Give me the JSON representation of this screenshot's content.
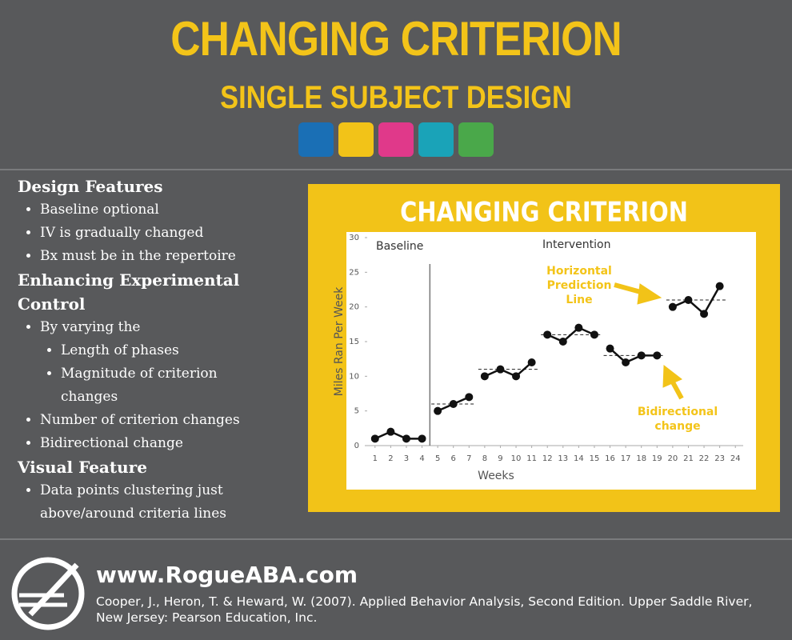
{
  "header": {
    "title": "CHANGING CRITERION",
    "subtitle": "SINGLE SUBJECT DESIGN"
  },
  "sections": [
    {
      "heading": "Design Features",
      "items": [
        {
          "text": "Baseline optional"
        },
        {
          "text": "IV is gradually changed"
        },
        {
          "text": "Bx must be in the repertoire"
        }
      ]
    },
    {
      "heading": "Enhancing Experimental Control",
      "items": [
        {
          "text": "By varying the",
          "subitems": [
            "Length of phases",
            "Magnitude of criterion changes"
          ]
        },
        {
          "text": "Number of criterion changes"
        },
        {
          "text": "Bidirectional change"
        }
      ]
    },
    {
      "heading": "Visual Feature",
      "items": [
        {
          "text": "Data points clustering just above/around criteria lines"
        }
      ]
    }
  ],
  "chart_data": {
    "type": "line",
    "title": "CHANGING CRITERION",
    "x_label": "Weeks",
    "y_label": "Miles Ran Per Week",
    "xlim": [
      0.5,
      24.5
    ],
    "xticks": [
      1,
      2,
      3,
      4,
      5,
      6,
      7,
      8,
      9,
      10,
      11,
      12,
      13,
      14,
      15,
      16,
      17,
      18,
      19,
      20,
      21,
      22,
      23,
      24
    ],
    "ylim": [
      0,
      30
    ],
    "yticks": [
      0,
      5,
      10,
      15,
      20,
      25,
      30
    ],
    "color": "#111111",
    "phases": [
      {
        "label": "Baseline"
      },
      {
        "label": "Intervention"
      }
    ],
    "phase_change": 4.5,
    "series": [
      {
        "x": [
          1,
          2,
          3,
          4
        ],
        "values": [
          1,
          2,
          1,
          1
        ]
      },
      {
        "x": [
          5,
          6,
          7
        ],
        "values": [
          5,
          6,
          7
        ]
      },
      {
        "x": [
          8,
          9,
          10,
          11
        ],
        "values": [
          10,
          11,
          10,
          12
        ]
      },
      {
        "x": [
          12,
          13,
          14,
          15
        ],
        "values": [
          16,
          15,
          17,
          16
        ]
      },
      {
        "x": [
          16,
          17,
          18,
          19
        ],
        "values": [
          14,
          12,
          13,
          13
        ]
      },
      {
        "x": [
          20,
          21,
          22,
          23
        ],
        "values": [
          20,
          21,
          19,
          23
        ]
      }
    ],
    "criterion_lines": [
      {
        "value": 6,
        "weeks": [
          5,
          7
        ]
      },
      {
        "value": 11,
        "weeks": [
          8,
          11
        ]
      },
      {
        "value": 16,
        "weeks": [
          12,
          15
        ]
      },
      {
        "value": 13,
        "weeks": [
          16,
          19
        ]
      },
      {
        "value": 21,
        "weeks": [
          20,
          23
        ]
      }
    ],
    "annotations": [
      "Horizontal Prediction Line",
      "Bidirectional change"
    ]
  },
  "footer": {
    "website": "www.RogueABA.com",
    "citation": "Cooper, J., Heron, T. & Heward, W. (2007). Applied Behavior Analysis, Second Edition. Upper Saddle River, New Jersey: Pearson Education, Inc."
  }
}
